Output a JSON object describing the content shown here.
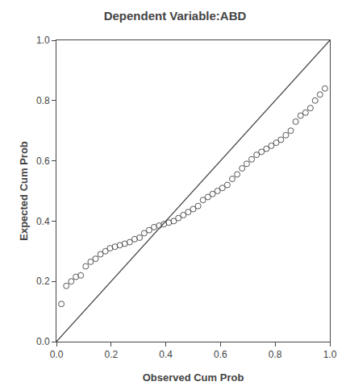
{
  "chart_data": {
    "type": "scatter",
    "title": "Dependent Variable:ABD",
    "xlabel": "Observed Cum Prob",
    "ylabel": "Expected Cum Prob",
    "xlim": [
      0.0,
      1.0
    ],
    "ylim": [
      0.0,
      1.0
    ],
    "xticks": [
      {
        "value": 0.0,
        "label": "0.0"
      },
      0.2,
      0.4,
      0.6,
      0.8,
      {
        "value": 1.0,
        "label": "1.0"
      }
    ],
    "yticks": [
      {
        "value": 0.0,
        "label": "0.0"
      },
      0.2,
      0.4,
      0.6,
      0.8,
      {
        "value": 1.0,
        "label": "1.0"
      }
    ],
    "grid": false,
    "series": [
      {
        "type": "line",
        "color": "#444444",
        "x": [
          0,
          1
        ],
        "values": [
          0,
          1
        ]
      },
      {
        "type": "scatter",
        "color": "#555555",
        "marker": "open circle",
        "x": [
          0.018,
          0.036,
          0.054,
          0.071,
          0.089,
          0.107,
          0.125,
          0.143,
          0.161,
          0.179,
          0.196,
          0.214,
          0.232,
          0.25,
          0.268,
          0.286,
          0.304,
          0.321,
          0.339,
          0.357,
          0.375,
          0.393,
          0.411,
          0.429,
          0.446,
          0.464,
          0.482,
          0.5,
          0.518,
          0.536,
          0.554,
          0.571,
          0.589,
          0.607,
          0.625,
          0.643,
          0.661,
          0.679,
          0.696,
          0.714,
          0.732,
          0.75,
          0.768,
          0.786,
          0.804,
          0.821,
          0.839,
          0.857,
          0.875,
          0.893,
          0.911,
          0.929,
          0.946,
          0.964,
          0.982
        ],
        "values": [
          0.125,
          0.185,
          0.2,
          0.215,
          0.22,
          0.25,
          0.265,
          0.275,
          0.29,
          0.3,
          0.31,
          0.315,
          0.32,
          0.325,
          0.33,
          0.34,
          0.345,
          0.36,
          0.37,
          0.38,
          0.385,
          0.39,
          0.395,
          0.4,
          0.41,
          0.42,
          0.43,
          0.44,
          0.45,
          0.47,
          0.48,
          0.49,
          0.5,
          0.51,
          0.52,
          0.54,
          0.555,
          0.575,
          0.59,
          0.605,
          0.62,
          0.63,
          0.64,
          0.65,
          0.66,
          0.67,
          0.685,
          0.7,
          0.73,
          0.75,
          0.76,
          0.775,
          0.8,
          0.82,
          0.84
        ]
      }
    ]
  }
}
